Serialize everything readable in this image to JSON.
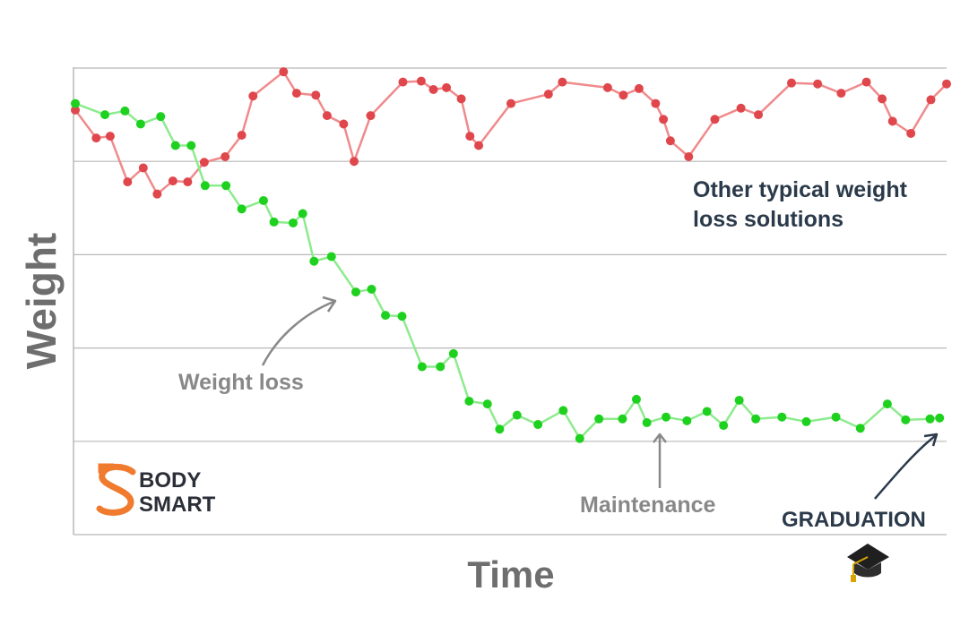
{
  "chart_data": {
    "type": "line",
    "xlabel": "Time",
    "ylabel": "Weight",
    "xlim": [
      0,
      100
    ],
    "ylim": [
      0,
      5
    ],
    "grid": true,
    "series": [
      {
        "name": "Other typical weight loss solutions",
        "color": "#e0474c",
        "line_color": "#f08a8c",
        "points": [
          [
            0.0,
            4.55
          ],
          [
            2.4,
            4.25
          ],
          [
            4.0,
            4.27
          ],
          [
            6.0,
            3.78
          ],
          [
            7.8,
            3.93
          ],
          [
            9.4,
            3.65
          ],
          [
            11.2,
            3.79
          ],
          [
            12.9,
            3.78
          ],
          [
            14.8,
            3.99
          ],
          [
            17.2,
            4.05
          ],
          [
            19.1,
            4.28
          ],
          [
            20.4,
            4.7
          ],
          [
            23.9,
            4.96
          ],
          [
            25.4,
            4.73
          ],
          [
            27.6,
            4.71
          ],
          [
            28.9,
            4.49
          ],
          [
            30.8,
            4.4
          ],
          [
            32.0,
            4.0
          ],
          [
            33.9,
            4.49
          ],
          [
            37.6,
            4.85
          ],
          [
            39.7,
            4.86
          ],
          [
            41.1,
            4.77
          ],
          [
            42.6,
            4.79
          ],
          [
            44.3,
            4.67
          ],
          [
            45.3,
            4.27
          ],
          [
            46.3,
            4.17
          ],
          [
            50.0,
            4.62
          ],
          [
            54.3,
            4.72
          ],
          [
            55.9,
            4.85
          ],
          [
            61.1,
            4.79
          ],
          [
            62.9,
            4.71
          ],
          [
            64.7,
            4.78
          ],
          [
            66.6,
            4.62
          ],
          [
            67.5,
            4.45
          ],
          [
            68.3,
            4.22
          ],
          [
            70.4,
            4.05
          ],
          [
            73.4,
            4.45
          ],
          [
            76.4,
            4.57
          ],
          [
            78.4,
            4.5
          ],
          [
            82.2,
            4.84
          ],
          [
            85.2,
            4.83
          ],
          [
            87.9,
            4.73
          ],
          [
            90.8,
            4.85
          ],
          [
            92.6,
            4.67
          ],
          [
            93.8,
            4.43
          ],
          [
            95.9,
            4.3
          ],
          [
            98.2,
            4.66
          ],
          [
            100.0,
            4.83
          ]
        ]
      },
      {
        "name": "Weight loss / Maintenance",
        "color": "#1fd11f",
        "line_color": "#8deb8d",
        "points": [
          [
            0.0,
            4.62
          ],
          [
            3.4,
            4.5
          ],
          [
            5.7,
            4.54
          ],
          [
            7.5,
            4.4
          ],
          [
            9.8,
            4.48
          ],
          [
            11.5,
            4.17
          ],
          [
            13.3,
            4.17
          ],
          [
            14.9,
            3.74
          ],
          [
            17.3,
            3.74
          ],
          [
            19.1,
            3.49
          ],
          [
            21.6,
            3.58
          ],
          [
            22.8,
            3.35
          ],
          [
            25.0,
            3.34
          ],
          [
            26.1,
            3.44
          ],
          [
            27.4,
            2.93
          ],
          [
            29.4,
            2.98
          ],
          [
            32.2,
            2.6
          ],
          [
            34.0,
            2.63
          ],
          [
            35.6,
            2.35
          ],
          [
            37.5,
            2.34
          ],
          [
            39.8,
            1.8
          ],
          [
            41.9,
            1.8
          ],
          [
            43.4,
            1.94
          ],
          [
            45.2,
            1.43
          ],
          [
            47.3,
            1.4
          ],
          [
            48.7,
            1.13
          ],
          [
            50.7,
            1.28
          ],
          [
            53.1,
            1.18
          ],
          [
            56.0,
            1.33
          ],
          [
            57.9,
            1.03
          ],
          [
            60.1,
            1.24
          ],
          [
            62.8,
            1.24
          ],
          [
            64.4,
            1.45
          ],
          [
            65.6,
            1.2
          ],
          [
            67.8,
            1.26
          ],
          [
            70.2,
            1.22
          ],
          [
            72.5,
            1.32
          ],
          [
            74.4,
            1.17
          ],
          [
            76.2,
            1.44
          ],
          [
            78.1,
            1.24
          ],
          [
            81.1,
            1.26
          ],
          [
            83.9,
            1.21
          ],
          [
            87.3,
            1.26
          ],
          [
            90.1,
            1.14
          ],
          [
            93.2,
            1.4
          ],
          [
            95.3,
            1.23
          ],
          [
            98.1,
            1.24
          ],
          [
            99.2,
            1.25
          ]
        ]
      }
    ],
    "annotations": {
      "other": "Other typical weight loss solutions",
      "weight_loss": "Weight loss",
      "maintenance": "Maintenance",
      "graduation": "GRADUATION"
    }
  },
  "logo": {
    "line1": "BODY",
    "line2": "SMART",
    "accent": "#f07a2e"
  },
  "colors": {
    "grid": "#b8b8b8",
    "axis_label": "#6e6e6e",
    "annotation": "#888888",
    "dark": "#2b3a4a"
  },
  "icons": {
    "graduation": "graduation-cap-icon"
  }
}
